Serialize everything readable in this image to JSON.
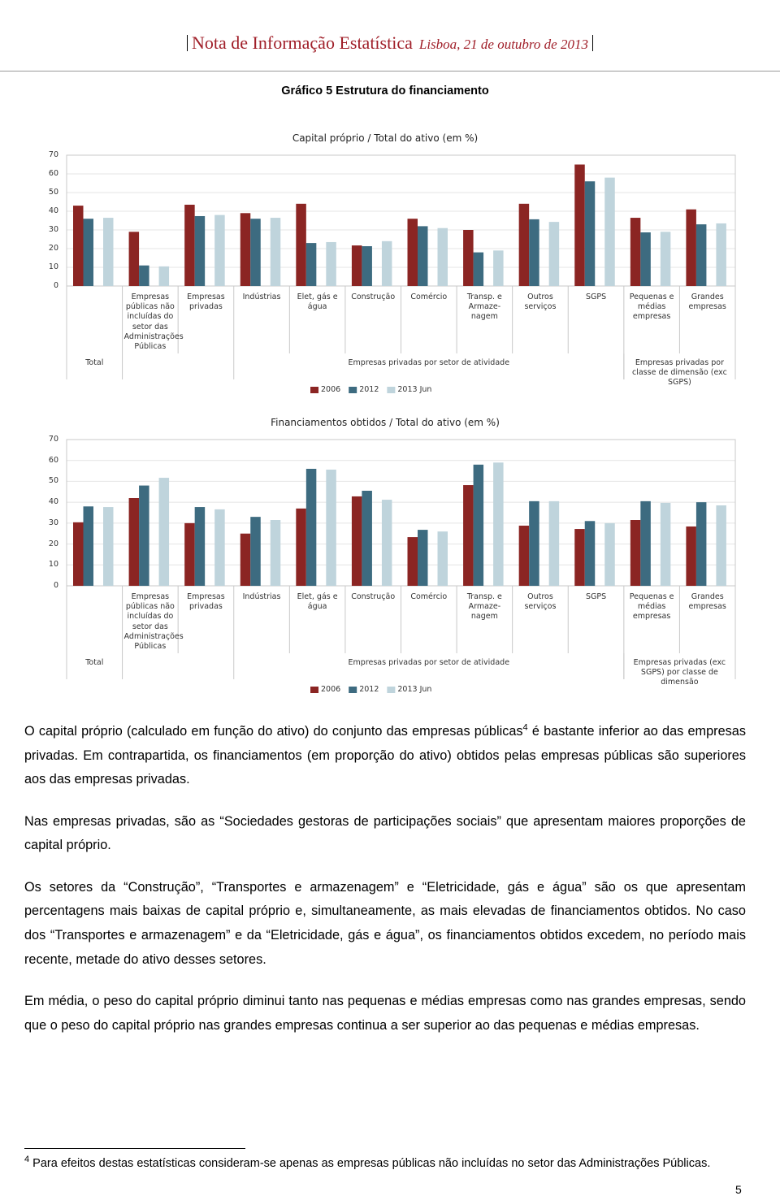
{
  "header": {
    "title": "Nota de Informação Estatística",
    "place_date": "Lisboa, 21 de outubro de 2013"
  },
  "figure_title": "Gráfico 5 Estrutura do financiamento",
  "chart_data": [
    {
      "type": "bar",
      "title": "Capital próprio / Total do ativo (em %)",
      "categories": [
        null,
        "Empresas públicas não incluídas do setor das Administrações Públicas",
        "Empresas privadas",
        "Indústrias",
        "Elet, gás e água",
        "Construção",
        "Comércio",
        "Transp. e Armaze-nagem",
        "Outros serviços",
        "SGPS",
        "Pequenas e médias empresas",
        "Grandes empresas"
      ],
      "groups": [
        {
          "label": "Total",
          "first": 0,
          "last": 0
        },
        {
          "label": "Empresas privadas por setor de atividade",
          "first": 3,
          "last": 9
        },
        {
          "label": "Empresas privadas por classe de dimensão (exc SGPS)",
          "first": 10,
          "last": 11
        }
      ],
      "series": [
        {
          "name": "2006",
          "color": "#8b2523",
          "values": [
            43,
            29,
            43.5,
            39,
            44,
            21.7,
            36,
            30,
            44,
            65,
            36.5,
            41
          ]
        },
        {
          "name": "2012",
          "color": "#3d6b80",
          "values": [
            36,
            11,
            37.4,
            36,
            23,
            21.3,
            32,
            18,
            35.7,
            56,
            28.7,
            33
          ]
        },
        {
          "name": "2013 Jun",
          "color": "#bfd4dc",
          "values": [
            36.5,
            10.5,
            38,
            36.5,
            23.5,
            24,
            31,
            19,
            34.3,
            58,
            29,
            33.5
          ]
        }
      ],
      "ylim": [
        0,
        70
      ],
      "yticks": [
        0,
        10,
        20,
        30,
        40,
        50,
        60,
        70
      ],
      "grid": true
    },
    {
      "type": "bar",
      "title": "Financiamentos obtidos / Total do ativo (em %)",
      "categories": [
        null,
        "Empresas públicas não incluídas do setor das Administrações Públicas",
        "Empresas privadas",
        "Indústrias",
        "Elet, gás e água",
        "Construção",
        "Comércio",
        "Transp. e Armaze-nagem",
        "Outros serviços",
        "SGPS",
        "Pequenas e médias empresas",
        "Grandes empresas"
      ],
      "groups": [
        {
          "label": "Total",
          "first": 0,
          "last": 0
        },
        {
          "label": "Empresas privadas por setor de atividade",
          "first": 3,
          "last": 9
        },
        {
          "label": "Empresas privadas (exc SGPS) por classe de dimensão",
          "first": 10,
          "last": 11
        }
      ],
      "series": [
        {
          "name": "2006",
          "color": "#8b2523",
          "values": [
            30.4,
            42,
            30,
            25,
            37,
            42.8,
            23.3,
            48.2,
            28.8,
            27.2,
            31.5,
            28.4
          ]
        },
        {
          "name": "2012",
          "color": "#3d6b80",
          "values": [
            38,
            48,
            37.7,
            33,
            56,
            45.5,
            26.8,
            58,
            40.5,
            31,
            40.5,
            40
          ]
        },
        {
          "name": "2013 Jun",
          "color": "#bfd4dc",
          "values": [
            37.7,
            51.7,
            36.6,
            31.5,
            55.6,
            41.2,
            26,
            59,
            40.5,
            30,
            39.7,
            38.5
          ]
        }
      ],
      "ylim": [
        0,
        70
      ],
      "yticks": [
        0,
        10,
        20,
        30,
        40,
        50,
        60,
        70
      ],
      "grid": true
    }
  ],
  "intro": {
    "before": "O capital próprio (calculado em função do ativo) do conjunto das empresas públicas",
    "ref": "4",
    "after": " é bastante inferior ao das empresas privadas. Em contrapartida, os financiamentos (em proporção do ativo) obtidos pelas empresas públicas são superiores aos das empresas privadas."
  },
  "paragraphs": [
    "Nas empresas privadas, são as “Sociedades gestoras de participações sociais” que apresentam maiores proporções de capital próprio.",
    "Os setores da “Construção”, “Transportes e armazenagem” e “Eletricidade, gás e água” são os que apresentam percentagens mais baixas de capital próprio e, simultaneamente, as mais elevadas de financiamentos obtidos. No caso dos “Transportes e armazenagem” e da “Eletricidade, gás e água”, os financiamentos obtidos excedem, no período mais recente, metade do ativo desses setores.",
    "Em média, o peso do capital próprio diminui tanto nas pequenas e médias empresas como nas grandes empresas, sendo que o peso do capital próprio nas grandes empresas continua a ser superior ao das pequenas e médias empresas."
  ],
  "footnote": {
    "number": "4",
    "text": "Para efeitos destas estatísticas consideram-se apenas as empresas públicas não incluídas no setor das Administrações Públicas."
  },
  "page_number": "5"
}
